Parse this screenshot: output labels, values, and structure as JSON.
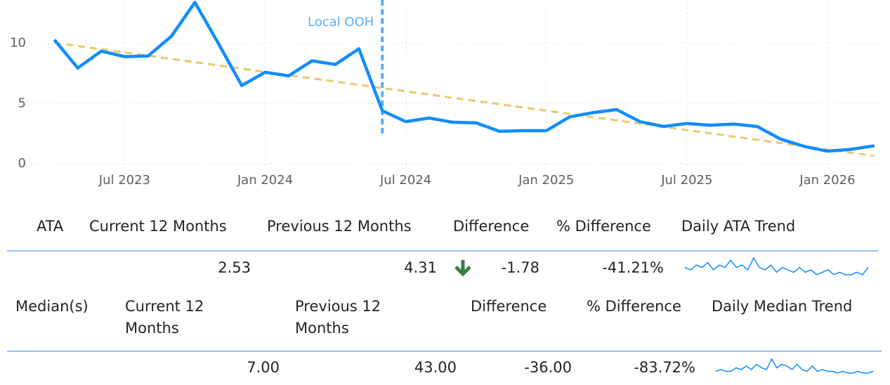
{
  "chart_data": {
    "type": "line",
    "x": [
      "2023-04",
      "2023-05",
      "2023-06",
      "2023-07",
      "2023-08",
      "2023-09",
      "2023-10",
      "2023-11",
      "2023-12",
      "2024-01",
      "2024-02",
      "2024-03",
      "2024-04",
      "2024-05",
      "2024-06",
      "2024-07",
      "2024-08",
      "2024-09",
      "2024-10",
      "2024-11",
      "2024-12",
      "2025-01",
      "2025-02",
      "2025-03",
      "2025-04",
      "2025-05",
      "2025-06",
      "2025-07",
      "2025-08",
      "2025-09",
      "2025-10",
      "2025-11",
      "2025-12",
      "2026-01",
      "2026-02",
      "2026-03"
    ],
    "series": [
      {
        "color": "#118dff",
        "values": [
          10.3,
          7.95,
          9.35,
          8.9,
          8.95,
          10.6,
          13.4,
          10.0,
          6.5,
          7.6,
          7.3,
          8.55,
          8.25,
          9.55,
          4.4,
          3.5,
          3.8,
          3.45,
          3.4,
          2.7,
          2.75,
          2.75,
          3.9,
          4.25,
          4.5,
          3.5,
          3.1,
          3.35,
          3.2,
          3.3,
          3.1,
          2.05,
          1.45,
          1.05,
          1.2,
          1.5
        ]
      }
    ],
    "trend_line": {
      "color": "#e8c96b",
      "values": [
        10.05,
        0.65
      ]
    },
    "annotation": {
      "x": "2024-06",
      "label": "Local OOH",
      "color": "#5aaef2"
    },
    "xlim": [
      "2023-03",
      "2026-04"
    ],
    "xticks": [
      {
        "value": "2023-07",
        "label": "Jul 2023"
      },
      {
        "value": "2024-01",
        "label": "Jan 2024"
      },
      {
        "value": "2024-07",
        "label": "Jul 2024"
      },
      {
        "value": "2025-01",
        "label": "Jan 2025"
      },
      {
        "value": "2025-07",
        "label": "Jul 2025"
      },
      {
        "value": "2026-01",
        "label": "Jan 2026"
      }
    ],
    "ylim": [
      -0.4,
      13.6
    ],
    "yticks": [
      0,
      5,
      10
    ],
    "grid": true
  },
  "tables": [
    {
      "headers": [
        "ATA",
        "Current 12 Months",
        "Previous 12 Months",
        "Difference",
        "% Difference",
        "Daily ATA Trend"
      ],
      "values": [
        "2.53",
        "4.31",
        "-1.78",
        "-41.21%"
      ],
      "trend": [
        5,
        4,
        6,
        5,
        7,
        4,
        6,
        5,
        8,
        5,
        6,
        4,
        9,
        5,
        4,
        6,
        3,
        5,
        4,
        3,
        5,
        3,
        4,
        2,
        3,
        4,
        2,
        3,
        2,
        2,
        3,
        2,
        5
      ]
    },
    {
      "headers": [
        "Median(s)",
        "Current 12 Months",
        "Previous 12 Months",
        "Difference",
        "% Difference",
        "Daily Median Trend"
      ],
      "values": [
        "7.00",
        "43.00",
        "-36.00",
        "-83.72%"
      ],
      "trend": [
        2,
        3,
        2,
        2,
        4,
        3,
        5,
        3,
        6,
        4,
        3,
        9,
        4,
        6,
        5,
        3,
        6,
        3,
        2,
        5,
        2,
        3,
        2,
        2,
        1,
        2,
        1,
        1,
        2,
        1,
        1,
        2
      ]
    }
  ]
}
